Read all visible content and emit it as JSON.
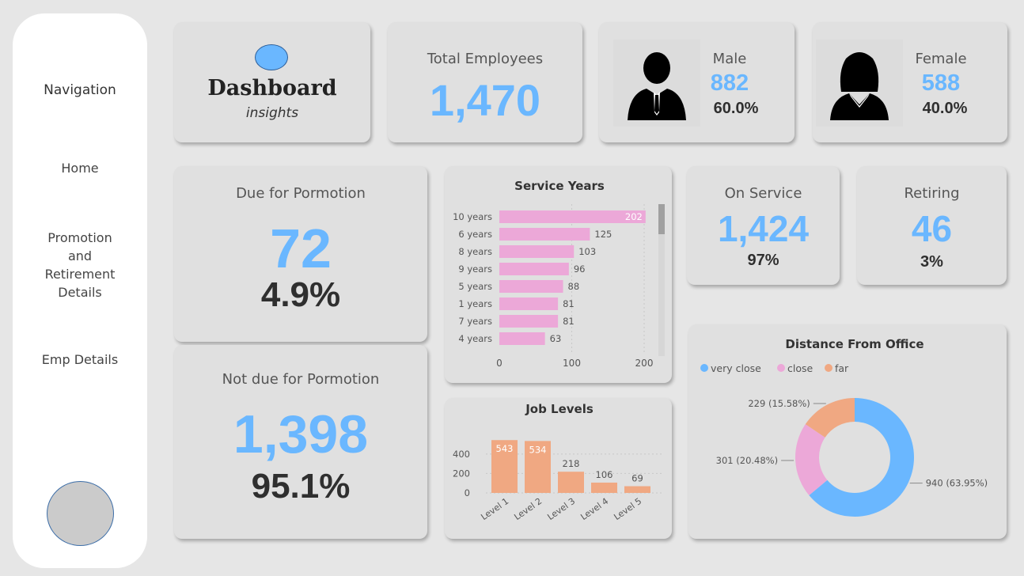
{
  "nav": {
    "title": "Navigation",
    "home": "Home",
    "promo_line1": "Promotion",
    "promo_line2": "and",
    "promo_line3": "Retirement",
    "promo_line4": "Details",
    "emp": "Emp Details"
  },
  "brand": {
    "title": "Dashboard",
    "subtitle": "insights"
  },
  "total": {
    "label": "Total Employees",
    "value": "1,470"
  },
  "male": {
    "label": "Male",
    "value": "882",
    "pct": "60.0%"
  },
  "female": {
    "label": "Female",
    "value": "588",
    "pct": "40.0%"
  },
  "due": {
    "label": "Due for Pormotion",
    "value": "72",
    "pct": "4.9%"
  },
  "notdue": {
    "label": "Not due for Pormotion",
    "value": "1,398",
    "pct": "95.1%"
  },
  "onservice": {
    "label": "On Service",
    "value": "1,424",
    "pct": "97%"
  },
  "retiring": {
    "label": "Retiring",
    "value": "46",
    "pct": "3%"
  },
  "colors": {
    "accent": "#6ab7ff",
    "pink": "#eca8d8",
    "salmon": "#f0a882",
    "card": "#e0e0e0"
  },
  "chart_data": [
    {
      "type": "bar",
      "orientation": "horizontal",
      "title": "Service Years",
      "categories": [
        "10 years",
        "6 years",
        "8 years",
        "9 years",
        "5 years",
        "1 years",
        "7 years",
        "4 years"
      ],
      "values": [
        202,
        125,
        103,
        96,
        88,
        81,
        81,
        63
      ],
      "xticks": [
        "0",
        "100",
        "200"
      ],
      "xlim": [
        0,
        200
      ],
      "color": "#eca8d8",
      "grid": true
    },
    {
      "type": "bar",
      "title": "Job Levels",
      "categories": [
        "Level 1",
        "Level 2",
        "Level 3",
        "Level 4",
        "Level 5"
      ],
      "values": [
        543,
        534,
        218,
        106,
        69
      ],
      "yticks": [
        "0",
        "200",
        "400"
      ],
      "ylim": [
        0,
        570
      ],
      "color": "#f0a882",
      "grid": true
    },
    {
      "type": "pie",
      "variant": "donut",
      "title": "Distance From Office",
      "legend": "top-left",
      "slices": [
        {
          "name": "very close",
          "value": 940,
          "label": "940 (63.95%)",
          "color": "#6ab7ff"
        },
        {
          "name": "close",
          "value": 301,
          "label": "301 (20.48%)",
          "color": "#eca8d8"
        },
        {
          "name": "far",
          "value": 229,
          "label": "229 (15.58%)",
          "color": "#f0a882"
        }
      ]
    }
  ]
}
